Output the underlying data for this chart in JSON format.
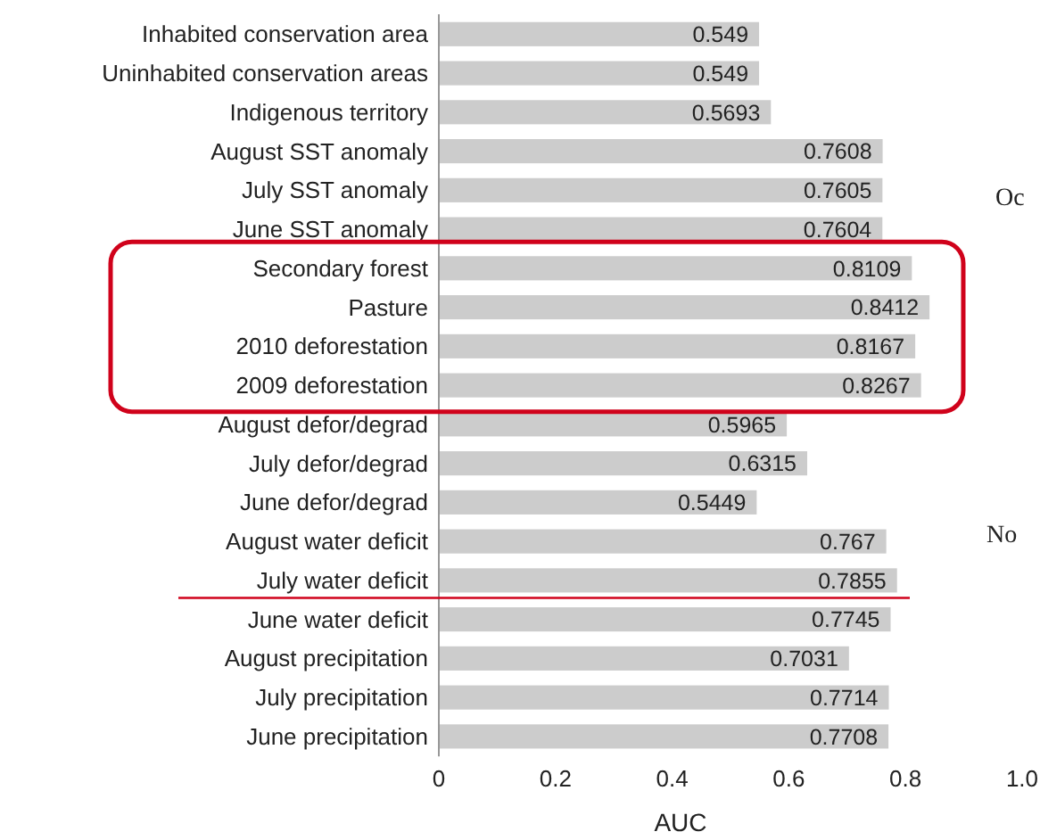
{
  "chart_data": {
    "type": "bar",
    "orientation": "horizontal",
    "xlabel": "AUC",
    "categories": [
      "Inhabited conservation area",
      "Uninhabited conservation areas",
      "Indigenous territory",
      "August SST anomaly",
      "July SST anomaly",
      "June SST anomaly",
      "Secondary forest",
      "Pasture",
      "2010 deforestation",
      "2009 deforestation",
      "August defor/degrad",
      "July defor/degrad",
      "June defor/degrad",
      "August water deficit",
      "July water deficit",
      "June water deficit",
      "August precipitation",
      "July precipitation",
      "June precipitation"
    ],
    "values": [
      0.549,
      0.549,
      0.5693,
      0.7608,
      0.7605,
      0.7604,
      0.8109,
      0.8412,
      0.8167,
      0.8267,
      0.5965,
      0.6315,
      0.5449,
      0.767,
      0.7855,
      0.7745,
      0.7031,
      0.7714,
      0.7708
    ],
    "color": "#cccccc",
    "data_labels": true,
    "xlim": [
      0,
      1
    ],
    "xticks": [
      0,
      0.2,
      0.4,
      0.6,
      0.8,
      {
        "value": 1,
        "label": "1.0"
      }
    ],
    "grid": false,
    "ref_lines": [
      {
        "axis": "y",
        "value": "July water deficit",
        "color": "#d0021b"
      }
    ],
    "annotations": [
      "Oc",
      "No"
    ]
  }
}
